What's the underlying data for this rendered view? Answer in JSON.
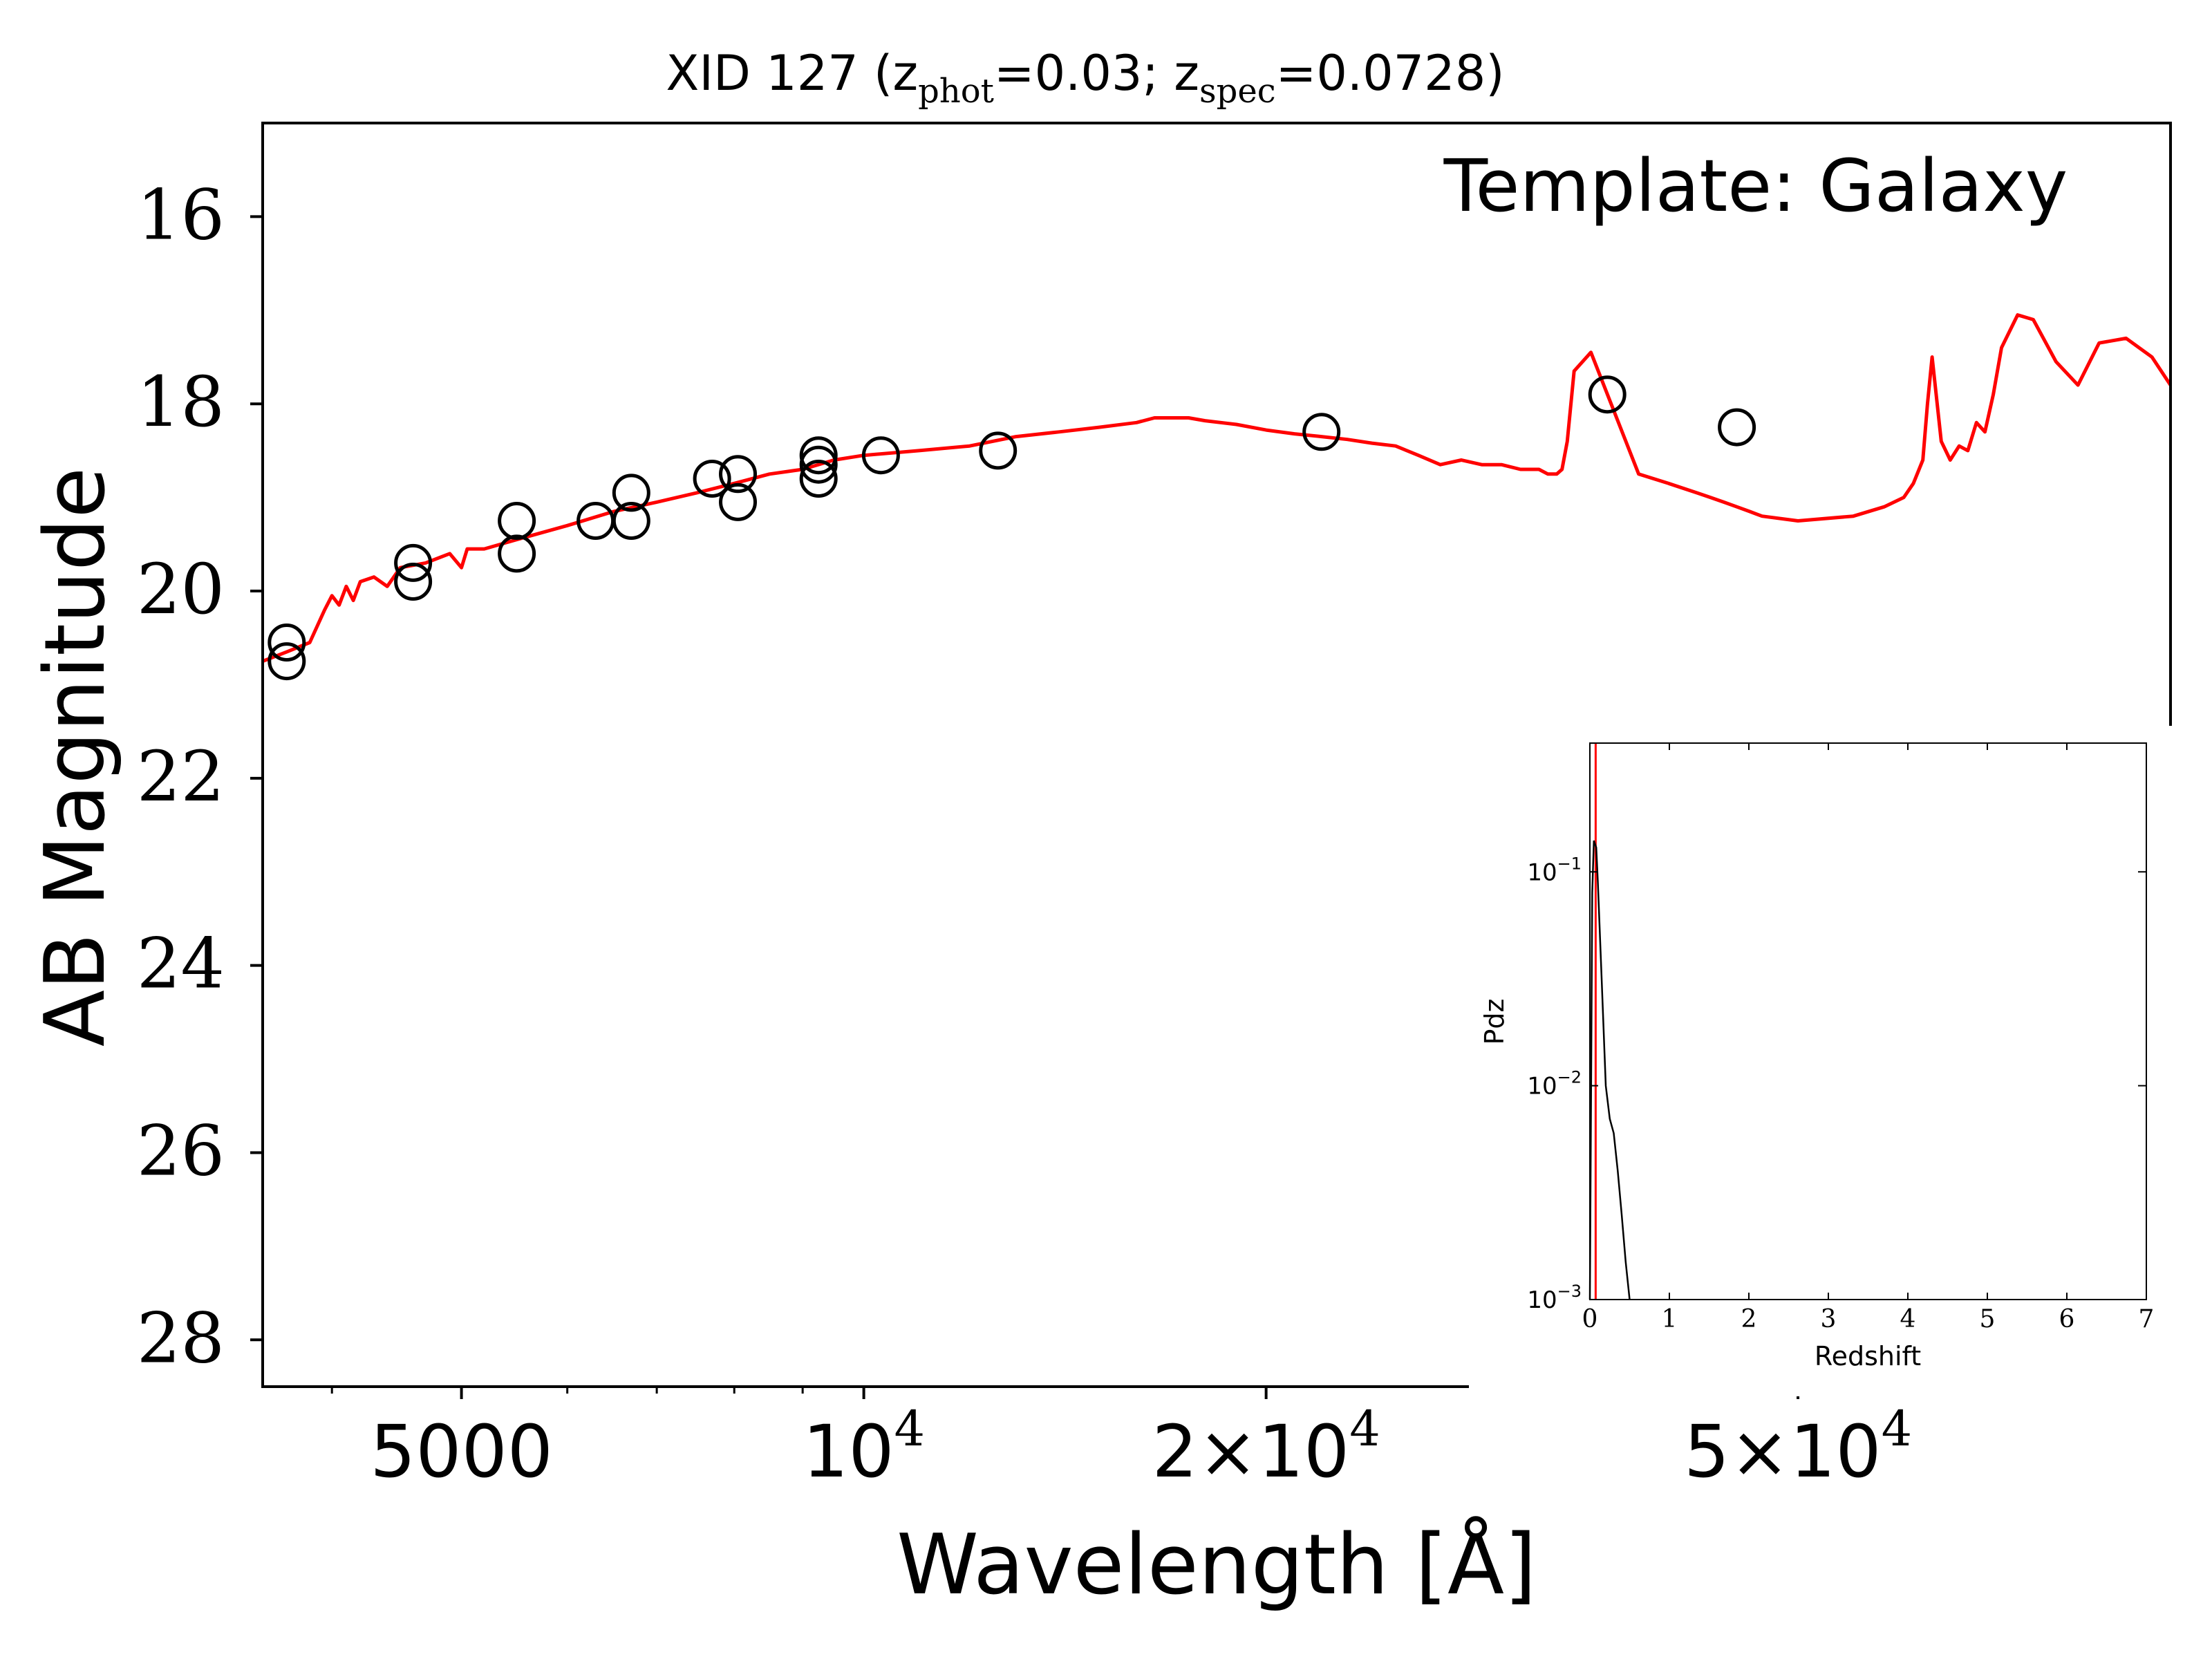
{
  "figure": {
    "title_main": "XID 127 (z",
    "title_sub1": "phot",
    "title_mid": "=0.03; z",
    "title_sub2": "spec",
    "title_end": "=0.0728)",
    "annotation": "Template: Galaxy",
    "xlabel": "Wavelength [Å]",
    "ylabel": "AB Magnitude",
    "colors": {
      "model": "#ff0000",
      "points": "#000000",
      "zspec_line": "#ff0000",
      "pdz": "#000000"
    }
  },
  "chart_data": [
    {
      "type": "scatter",
      "xscale": "log",
      "yaxis_inverted": true,
      "xlim": [
        3550,
        95000
      ],
      "ylim": [
        28.5,
        15.0
      ],
      "x_ticks": [
        {
          "value": 5000,
          "base": "5000",
          "exp": ""
        },
        {
          "value": 10000,
          "base": "10",
          "exp": "4"
        },
        {
          "value": 20000,
          "base": "2×10",
          "exp": "4"
        },
        {
          "value": 50000,
          "base": "5×10",
          "exp": "4"
        }
      ],
      "x_minor_ticks": [
        4000,
        6000,
        7000,
        8000,
        9000,
        30000,
        40000,
        60000,
        70000,
        80000,
        90000
      ],
      "y_ticks": [
        "16",
        "18",
        "20",
        "22",
        "24",
        "26",
        "28"
      ],
      "series": [
        {
          "kind": "photometry",
          "x": [
            3700,
            3700,
            4600,
            4600,
            5500,
            5500,
            6300,
            6700,
            6700,
            7700,
            8050,
            8050,
            9250,
            9250,
            9250,
            10300,
            12600,
            22000,
            36000,
            45000
          ],
          "y": [
            20.55,
            20.75,
            19.7,
            19.9,
            19.25,
            19.6,
            19.25,
            18.95,
            19.25,
            18.8,
            18.75,
            19.05,
            18.55,
            18.65,
            18.8,
            18.55,
            18.5,
            18.3,
            17.9,
            18.25
          ]
        },
        {
          "kind": "model",
          "x": [
            3550,
            3700,
            3850,
            3950,
            4000,
            4050,
            4100,
            4150,
            4200,
            4300,
            4400,
            4500,
            4700,
            4900,
            5000,
            5050,
            5200,
            5500,
            6000,
            6500,
            7000,
            7500,
            8000,
            8500,
            9000,
            9500,
            10000,
            11000,
            12000,
            13000,
            14000,
            15000,
            16000,
            16500,
            17000,
            17500,
            18000,
            19000,
            20000,
            21000,
            22000,
            23000,
            24000,
            25000,
            26000,
            27000,
            28000,
            29000,
            30000,
            31000,
            32000,
            32500,
            33000,
            33300,
            33600,
            34000,
            35000,
            38000,
            40000,
            42000,
            43000,
            44000,
            45000,
            46000,
            47000,
            50000,
            55000,
            58000,
            60000,
            61000,
            62000,
            62500,
            63000,
            64000,
            65000,
            66000,
            67000,
            68000,
            69000,
            70000,
            71000,
            73000,
            75000,
            78000,
            81000,
            84000,
            88000,
            92000,
            95000
          ],
          "y": [
            20.75,
            20.65,
            20.55,
            20.2,
            20.05,
            20.15,
            19.95,
            20.1,
            19.9,
            19.85,
            19.95,
            19.75,
            19.7,
            19.6,
            19.75,
            19.55,
            19.55,
            19.45,
            19.3,
            19.15,
            19.05,
            18.95,
            18.85,
            18.75,
            18.7,
            18.6,
            18.55,
            18.5,
            18.45,
            18.35,
            18.3,
            18.25,
            18.2,
            18.15,
            18.15,
            18.15,
            18.18,
            18.22,
            18.28,
            18.32,
            18.35,
            18.38,
            18.42,
            18.45,
            18.55,
            18.65,
            18.6,
            18.65,
            18.65,
            18.7,
            18.7,
            18.75,
            18.75,
            18.7,
            18.4,
            17.65,
            17.45,
            18.75,
            18.85,
            18.95,
            19.0,
            19.05,
            19.1,
            19.15,
            19.2,
            19.25,
            19.2,
            19.1,
            19.0,
            18.85,
            18.6,
            18.0,
            17.5,
            18.4,
            18.6,
            18.45,
            18.5,
            18.2,
            18.3,
            17.9,
            17.4,
            17.05,
            17.1,
            17.55,
            17.8,
            17.35,
            17.3,
            17.5,
            17.8
          ]
        }
      ]
    },
    {
      "type": "line",
      "name": "inset",
      "xlabel": "Redshift",
      "ylabel": "Pdz",
      "yscale": "log",
      "xlim": [
        0,
        7
      ],
      "ylim": [
        0.001,
        0.4
      ],
      "x_ticks": [
        "0",
        "1",
        "2",
        "3",
        "4",
        "5",
        "6",
        "7"
      ],
      "y_ticks": [
        {
          "value": 0.1,
          "base": "10",
          "exp": "−1"
        },
        {
          "value": 0.01,
          "base": "10",
          "exp": "−2"
        },
        {
          "value": 0.001,
          "base": "10",
          "exp": "−3"
        }
      ],
      "zspec_marker": 0.0728,
      "x": [
        0.0,
        0.03,
        0.05,
        0.08,
        0.1,
        0.15,
        0.2,
        0.25,
        0.3,
        0.35,
        0.4,
        0.45,
        0.5
      ],
      "y": [
        0.001,
        0.08,
        0.14,
        0.13,
        0.09,
        0.03,
        0.01,
        0.007,
        0.006,
        0.004,
        0.0025,
        0.0015,
        0.001
      ]
    }
  ]
}
